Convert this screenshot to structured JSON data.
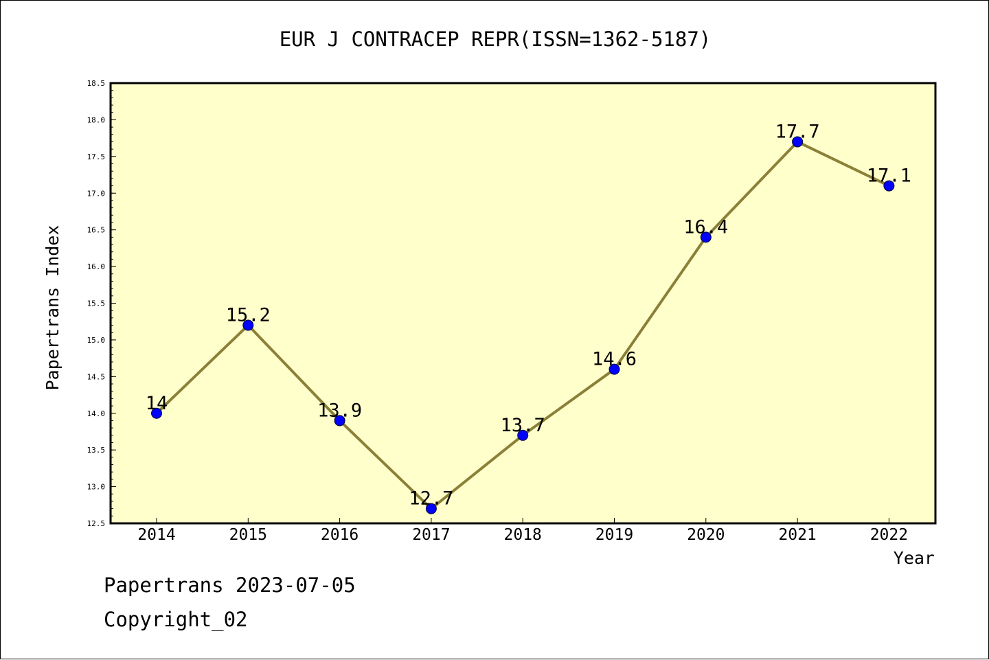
{
  "colors": {
    "plot_background": "#ffffcc",
    "line": "#8b8038",
    "marker": "#0000ff",
    "frame": "#000000"
  },
  "chart_data": {
    "type": "line",
    "title": "EUR J CONTRACEP REPR(ISSN=1362-5187)",
    "xlabel": "Year",
    "ylabel": "Papertrans Index",
    "categories": [
      "2014",
      "2015",
      "2016",
      "2017",
      "2018",
      "2019",
      "2020",
      "2021",
      "2022"
    ],
    "series": [
      {
        "values": [
          14,
          15.2,
          13.9,
          12.7,
          13.7,
          14.6,
          16.4,
          17.7,
          17.1
        ],
        "data_labels": [
          "14",
          "15.2",
          "13.9",
          "12.7",
          "13.7",
          "14.6",
          "16.4",
          "17.7",
          "17.1"
        ]
      }
    ],
    "ylim": [
      12.5,
      18.5
    ],
    "ytick_labels": [
      "12.5",
      "13.0",
      "13.5",
      "14.0",
      "14.5",
      "15.0",
      "15.5",
      "16.0",
      "16.5",
      "17.0",
      "17.5",
      "18.0",
      "18.5"
    ],
    "grid": false,
    "legend": "none"
  },
  "footer": {
    "source_line": "Papertrans 2023-07-05",
    "copyright_line": "Copyright_02"
  }
}
